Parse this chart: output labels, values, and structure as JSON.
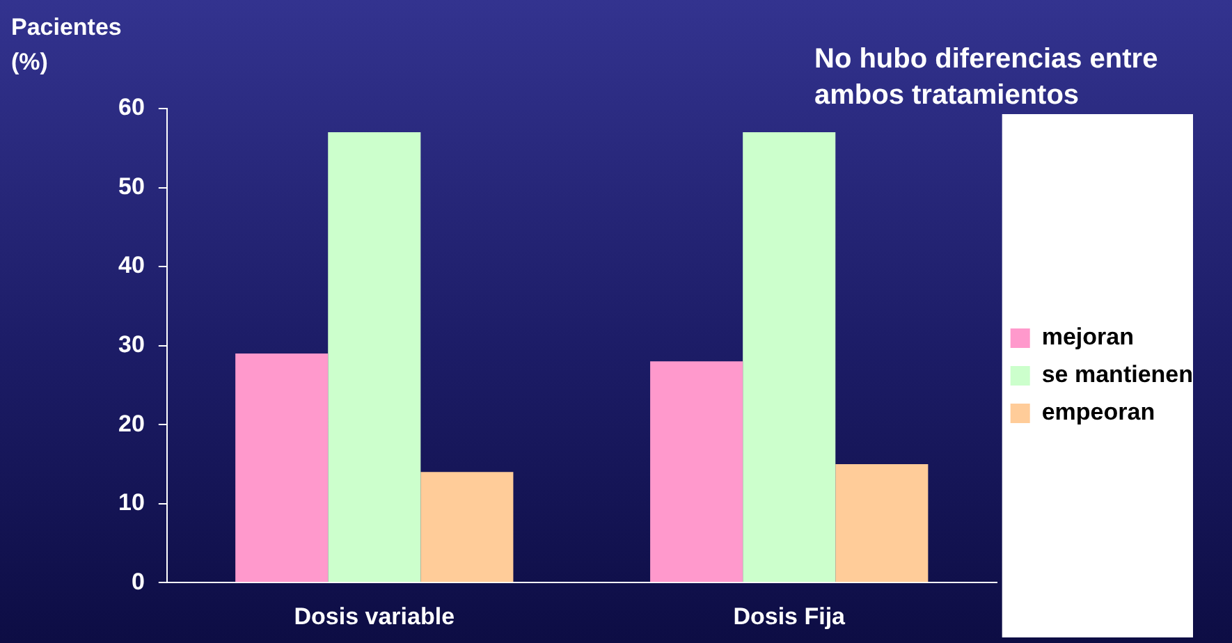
{
  "chart_data": {
    "type": "bar",
    "ylabel": "Pacientes (%)",
    "annotations": [
      "No hubo diferencias entre ambos tratamientos"
    ],
    "categories": [
      "Dosis variable",
      "Dosis Fija"
    ],
    "series": [
      {
        "name": "mejoran",
        "color": "#ff99cc",
        "values": [
          29,
          28
        ]
      },
      {
        "name": "se mantienen",
        "color": "#ccffcc",
        "values": [
          57,
          57
        ]
      },
      {
        "name": "empeoran",
        "color": "#ffcc99",
        "values": [
          14,
          15
        ]
      }
    ],
    "ylim": [
      0,
      60
    ],
    "yticks": [
      0,
      10,
      20,
      30,
      40,
      50,
      60
    ],
    "grid": false,
    "legend": "right"
  }
}
